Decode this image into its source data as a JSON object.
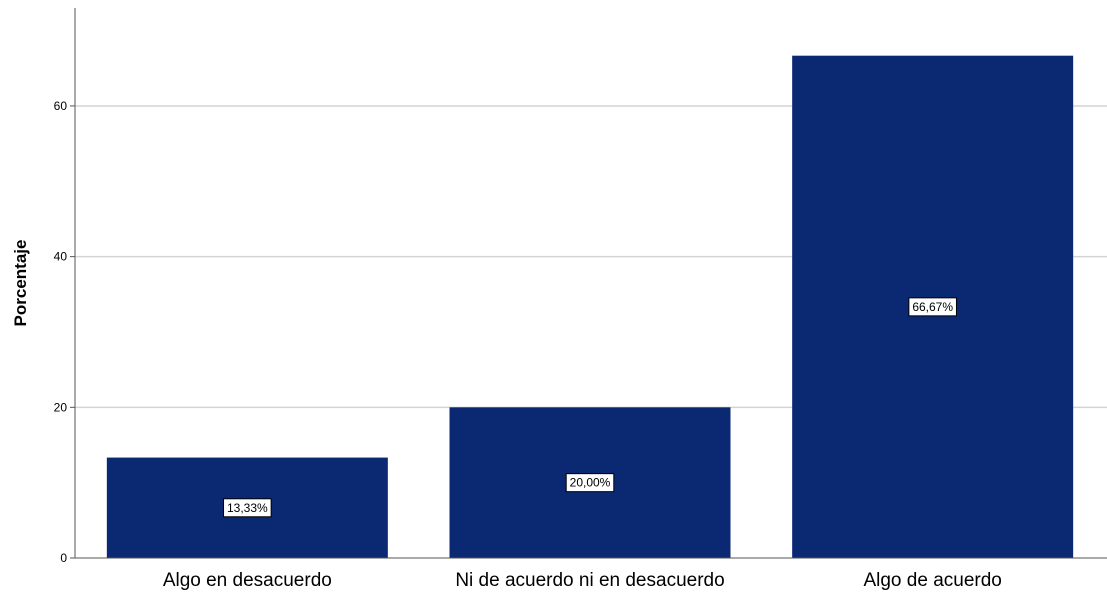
{
  "chart_data": {
    "type": "bar",
    "categories": [
      "Algo en desacuerdo",
      "Ni de acuerdo ni en desacuerdo",
      "Algo de acuerdo"
    ],
    "values": [
      13.33,
      20.0,
      66.67
    ],
    "data_labels": [
      "13,33%",
      "20,00%",
      "66,67%"
    ],
    "title": "",
    "xlabel": "",
    "ylabel": "Porcentaje",
    "ylim": [
      0,
      73
    ],
    "yticks": [
      0,
      20,
      40,
      60
    ],
    "grid": true,
    "legend": "none",
    "bar_color": "#0b2873",
    "grid_color": "#d4d4d4"
  }
}
